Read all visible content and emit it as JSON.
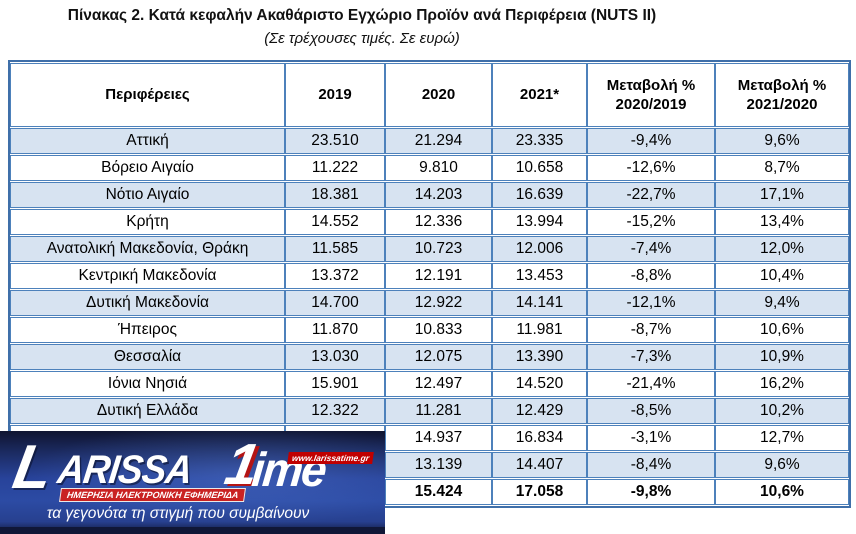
{
  "title": "Πίνακας 2. Κατά κεφαλήν Ακαθάριστο Εγχώριο Προϊόν ανά Περιφέρεια (NUTS II)",
  "subtitle": "(Σε τρέχουσες τιμές. Σε ευρώ)",
  "table": {
    "columns": [
      "Περιφέρειες",
      "2019",
      "2020",
      "2021*",
      "Μεταβολή %\n2020/2019",
      "Μεταβολή %\n2021/2020"
    ],
    "rows": [
      {
        "region": "Αττική",
        "v2019": "23.510",
        "v2020": "21.294",
        "v2021": "23.335",
        "pct_2020_2019": "-9,4%",
        "pct_2021_2020": "9,6%"
      },
      {
        "region": "Βόρειο Αιγαίο",
        "v2019": "11.222",
        "v2020": "9.810",
        "v2021": "10.658",
        "pct_2020_2019": "-12,6%",
        "pct_2021_2020": "8,7%"
      },
      {
        "region": "Νότιο Αιγαίο",
        "v2019": "18.381",
        "v2020": "14.203",
        "v2021": "16.639",
        "pct_2020_2019": "-22,7%",
        "pct_2021_2020": "17,1%"
      },
      {
        "region": "Κρήτη",
        "v2019": "14.552",
        "v2020": "12.336",
        "v2021": "13.994",
        "pct_2020_2019": "-15,2%",
        "pct_2021_2020": "13,4%"
      },
      {
        "region": "Ανατολική Μακεδονία, Θράκη",
        "v2019": "11.585",
        "v2020": "10.723",
        "v2021": "12.006",
        "pct_2020_2019": "-7,4%",
        "pct_2021_2020": "12,0%"
      },
      {
        "region": "Κεντρική Μακεδονία",
        "v2019": "13.372",
        "v2020": "12.191",
        "v2021": "13.453",
        "pct_2020_2019": "-8,8%",
        "pct_2021_2020": "10,4%"
      },
      {
        "region": "Δυτική Μακεδονία",
        "v2019": "14.700",
        "v2020": "12.922",
        "v2021": "14.141",
        "pct_2020_2019": "-12,1%",
        "pct_2021_2020": "9,4%"
      },
      {
        "region": "Ήπειρος",
        "v2019": "11.870",
        "v2020": "10.833",
        "v2021": "11.981",
        "pct_2020_2019": "-8,7%",
        "pct_2021_2020": "10,6%"
      },
      {
        "region": "Θεσσαλία",
        "v2019": "13.030",
        "v2020": "12.075",
        "v2021": "13.390",
        "pct_2020_2019": "-7,3%",
        "pct_2021_2020": "10,9%"
      },
      {
        "region": "Ιόνια Νησιά",
        "v2019": "15.901",
        "v2020": "12.497",
        "v2021": "14.520",
        "pct_2020_2019": "-21,4%",
        "pct_2021_2020": "16,2%"
      },
      {
        "region": "Δυτική Ελλάδα",
        "v2019": "12.322",
        "v2020": "11.281",
        "v2021": "12.429",
        "pct_2020_2019": "-8,5%",
        "pct_2021_2020": "10,2%"
      },
      {
        "region": "",
        "v2019": "",
        "v2020": "14.937",
        "v2021": "16.834",
        "pct_2020_2019": "-3,1%",
        "pct_2021_2020": "12,7%"
      },
      {
        "region": "",
        "v2019": "",
        "v2020": "13.139",
        "v2021": "14.407",
        "pct_2020_2019": "-8,4%",
        "pct_2021_2020": "9,6%"
      },
      {
        "region": "",
        "v2019": "",
        "v2020": "15.424",
        "v2021": "17.058",
        "pct_2020_2019": "-9,8%",
        "pct_2021_2020": "10,6%",
        "bold": true
      }
    ]
  },
  "watermark": {
    "brand_initial": "L",
    "brand_rest": "ARISSA",
    "brand_t_glyph": "1",
    "brand_time_rest": "ime",
    "url": "www.larissatime.gr",
    "banner": "ΗΜΕΡΗΣΙΑ ΗΛΕΚΤΡΟΝΙΚΗ ΕΦΗΜΕΡΙΔΑ",
    "tagline": "τα γεγονότα τη στιγμή που συμβαίνουν"
  },
  "colors": {
    "row_stripe": "#d7e3f1",
    "table_border": "#4d81bb",
    "table_outer_border": "#3f6fa9",
    "logo_blue": "#2c4ba4",
    "logo_dark": "#101737",
    "logo_red": "#c00000"
  }
}
